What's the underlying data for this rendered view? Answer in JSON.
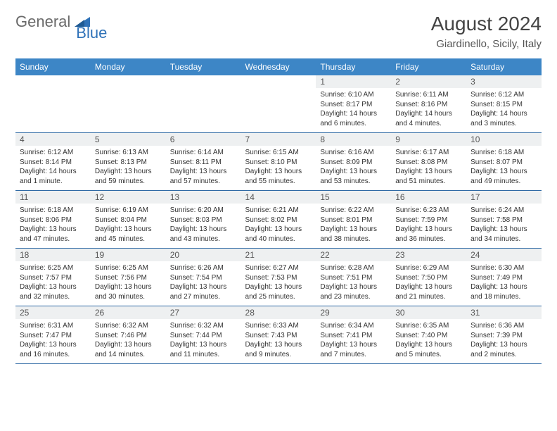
{
  "logo": {
    "text1": "General",
    "text2": "Blue",
    "color1": "#6a6a6a",
    "color2": "#2f72b8",
    "triangle_color": "#2f72b8"
  },
  "title": "August 2024",
  "location": "Giardinello, Sicily, Italy",
  "colors": {
    "header_bg": "#3d86c6",
    "header_text": "#ffffff",
    "daynum_bg": "#eef0f1",
    "row_border": "#2f6aa5",
    "text": "#333333"
  },
  "days_of_week": [
    "Sunday",
    "Monday",
    "Tuesday",
    "Wednesday",
    "Thursday",
    "Friday",
    "Saturday"
  ],
  "weeks": [
    [
      {
        "n": "",
        "sr": "",
        "ss": "",
        "dl": ""
      },
      {
        "n": "",
        "sr": "",
        "ss": "",
        "dl": ""
      },
      {
        "n": "",
        "sr": "",
        "ss": "",
        "dl": ""
      },
      {
        "n": "",
        "sr": "",
        "ss": "",
        "dl": ""
      },
      {
        "n": "1",
        "sr": "Sunrise: 6:10 AM",
        "ss": "Sunset: 8:17 PM",
        "dl": "Daylight: 14 hours and 6 minutes."
      },
      {
        "n": "2",
        "sr": "Sunrise: 6:11 AM",
        "ss": "Sunset: 8:16 PM",
        "dl": "Daylight: 14 hours and 4 minutes."
      },
      {
        "n": "3",
        "sr": "Sunrise: 6:12 AM",
        "ss": "Sunset: 8:15 PM",
        "dl": "Daylight: 14 hours and 3 minutes."
      }
    ],
    [
      {
        "n": "4",
        "sr": "Sunrise: 6:12 AM",
        "ss": "Sunset: 8:14 PM",
        "dl": "Daylight: 14 hours and 1 minute."
      },
      {
        "n": "5",
        "sr": "Sunrise: 6:13 AM",
        "ss": "Sunset: 8:13 PM",
        "dl": "Daylight: 13 hours and 59 minutes."
      },
      {
        "n": "6",
        "sr": "Sunrise: 6:14 AM",
        "ss": "Sunset: 8:11 PM",
        "dl": "Daylight: 13 hours and 57 minutes."
      },
      {
        "n": "7",
        "sr": "Sunrise: 6:15 AM",
        "ss": "Sunset: 8:10 PM",
        "dl": "Daylight: 13 hours and 55 minutes."
      },
      {
        "n": "8",
        "sr": "Sunrise: 6:16 AM",
        "ss": "Sunset: 8:09 PM",
        "dl": "Daylight: 13 hours and 53 minutes."
      },
      {
        "n": "9",
        "sr": "Sunrise: 6:17 AM",
        "ss": "Sunset: 8:08 PM",
        "dl": "Daylight: 13 hours and 51 minutes."
      },
      {
        "n": "10",
        "sr": "Sunrise: 6:18 AM",
        "ss": "Sunset: 8:07 PM",
        "dl": "Daylight: 13 hours and 49 minutes."
      }
    ],
    [
      {
        "n": "11",
        "sr": "Sunrise: 6:18 AM",
        "ss": "Sunset: 8:06 PM",
        "dl": "Daylight: 13 hours and 47 minutes."
      },
      {
        "n": "12",
        "sr": "Sunrise: 6:19 AM",
        "ss": "Sunset: 8:04 PM",
        "dl": "Daylight: 13 hours and 45 minutes."
      },
      {
        "n": "13",
        "sr": "Sunrise: 6:20 AM",
        "ss": "Sunset: 8:03 PM",
        "dl": "Daylight: 13 hours and 43 minutes."
      },
      {
        "n": "14",
        "sr": "Sunrise: 6:21 AM",
        "ss": "Sunset: 8:02 PM",
        "dl": "Daylight: 13 hours and 40 minutes."
      },
      {
        "n": "15",
        "sr": "Sunrise: 6:22 AM",
        "ss": "Sunset: 8:01 PM",
        "dl": "Daylight: 13 hours and 38 minutes."
      },
      {
        "n": "16",
        "sr": "Sunrise: 6:23 AM",
        "ss": "Sunset: 7:59 PM",
        "dl": "Daylight: 13 hours and 36 minutes."
      },
      {
        "n": "17",
        "sr": "Sunrise: 6:24 AM",
        "ss": "Sunset: 7:58 PM",
        "dl": "Daylight: 13 hours and 34 minutes."
      }
    ],
    [
      {
        "n": "18",
        "sr": "Sunrise: 6:25 AM",
        "ss": "Sunset: 7:57 PM",
        "dl": "Daylight: 13 hours and 32 minutes."
      },
      {
        "n": "19",
        "sr": "Sunrise: 6:25 AM",
        "ss": "Sunset: 7:56 PM",
        "dl": "Daylight: 13 hours and 30 minutes."
      },
      {
        "n": "20",
        "sr": "Sunrise: 6:26 AM",
        "ss": "Sunset: 7:54 PM",
        "dl": "Daylight: 13 hours and 27 minutes."
      },
      {
        "n": "21",
        "sr": "Sunrise: 6:27 AM",
        "ss": "Sunset: 7:53 PM",
        "dl": "Daylight: 13 hours and 25 minutes."
      },
      {
        "n": "22",
        "sr": "Sunrise: 6:28 AM",
        "ss": "Sunset: 7:51 PM",
        "dl": "Daylight: 13 hours and 23 minutes."
      },
      {
        "n": "23",
        "sr": "Sunrise: 6:29 AM",
        "ss": "Sunset: 7:50 PM",
        "dl": "Daylight: 13 hours and 21 minutes."
      },
      {
        "n": "24",
        "sr": "Sunrise: 6:30 AM",
        "ss": "Sunset: 7:49 PM",
        "dl": "Daylight: 13 hours and 18 minutes."
      }
    ],
    [
      {
        "n": "25",
        "sr": "Sunrise: 6:31 AM",
        "ss": "Sunset: 7:47 PM",
        "dl": "Daylight: 13 hours and 16 minutes."
      },
      {
        "n": "26",
        "sr": "Sunrise: 6:32 AM",
        "ss": "Sunset: 7:46 PM",
        "dl": "Daylight: 13 hours and 14 minutes."
      },
      {
        "n": "27",
        "sr": "Sunrise: 6:32 AM",
        "ss": "Sunset: 7:44 PM",
        "dl": "Daylight: 13 hours and 11 minutes."
      },
      {
        "n": "28",
        "sr": "Sunrise: 6:33 AM",
        "ss": "Sunset: 7:43 PM",
        "dl": "Daylight: 13 hours and 9 minutes."
      },
      {
        "n": "29",
        "sr": "Sunrise: 6:34 AM",
        "ss": "Sunset: 7:41 PM",
        "dl": "Daylight: 13 hours and 7 minutes."
      },
      {
        "n": "30",
        "sr": "Sunrise: 6:35 AM",
        "ss": "Sunset: 7:40 PM",
        "dl": "Daylight: 13 hours and 5 minutes."
      },
      {
        "n": "31",
        "sr": "Sunrise: 6:36 AM",
        "ss": "Sunset: 7:39 PM",
        "dl": "Daylight: 13 hours and 2 minutes."
      }
    ]
  ]
}
